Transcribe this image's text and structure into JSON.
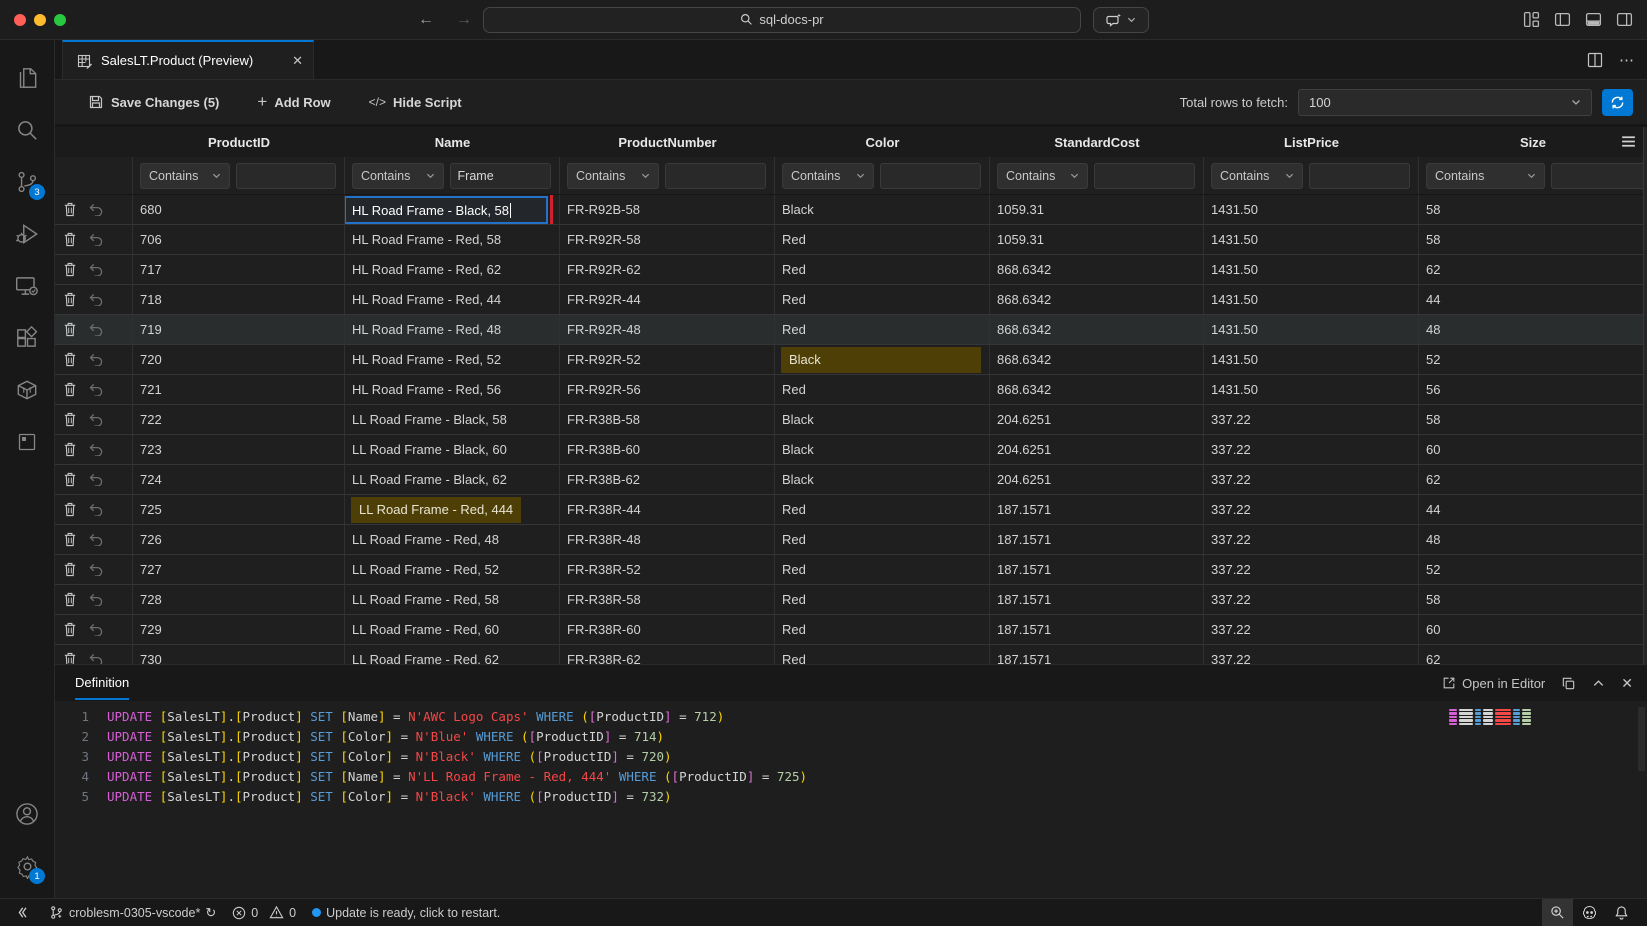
{
  "window": {
    "search_query": "sql-docs-pr",
    "traffic_lights": [
      "close",
      "minimize",
      "zoom"
    ],
    "titlebar_icons": [
      "customize-layout",
      "toggle-primary-sidebar",
      "toggle-panel",
      "toggle-secondary-sidebar"
    ]
  },
  "activity_bar": {
    "items": [
      "explorer",
      "search",
      "source-control",
      "run-and-debug",
      "remote-explorer",
      "extensions",
      "containers",
      "database"
    ],
    "source_control_badge": "3",
    "settings_badge": "1",
    "bottom_items": [
      "accounts",
      "settings"
    ]
  },
  "tab": {
    "title": "SalesLT.Product (Preview)"
  },
  "editor_actions": [
    "split-editor",
    "more-actions"
  ],
  "toolbar": {
    "save_label": "Save Changes (5)",
    "add_row_label": "Add Row",
    "hide_script_label": "Hide Script",
    "fetch_label": "Total rows to fetch:",
    "fetch_value": "100"
  },
  "grid": {
    "columns": [
      "ProductID",
      "Name",
      "ProductNumber",
      "Color",
      "StandardCost",
      "ListPrice",
      "Size"
    ],
    "filter_operator": "Contains",
    "filters": {
      "name": "Frame"
    },
    "editing_cell": {
      "row": "680",
      "column": "Name",
      "value": "HL Road Frame - Black, 58"
    },
    "rows": [
      {
        "id": "680",
        "name": "HL Road Frame - Black, 58",
        "num": "FR-R92B-58",
        "color": "Black",
        "cost": "1059.31",
        "price": "1431.50",
        "size": "58",
        "edit": "name"
      },
      {
        "id": "706",
        "name": "HL Road Frame - Red, 58",
        "num": "FR-R92R-58",
        "color": "Red",
        "cost": "1059.31",
        "price": "1431.50",
        "size": "58"
      },
      {
        "id": "717",
        "name": "HL Road Frame - Red, 62",
        "num": "FR-R92R-62",
        "color": "Red",
        "cost": "868.6342",
        "price": "1431.50",
        "size": "62"
      },
      {
        "id": "718",
        "name": "HL Road Frame - Red, 44",
        "num": "FR-R92R-44",
        "color": "Red",
        "cost": "868.6342",
        "price": "1431.50",
        "size": "44"
      },
      {
        "id": "719",
        "name": "HL Road Frame - Red, 48",
        "num": "FR-R92R-48",
        "color": "Red",
        "cost": "868.6342",
        "price": "1431.50",
        "size": "48",
        "selected": true
      },
      {
        "id": "720",
        "name": "HL Road Frame - Red, 52",
        "num": "FR-R92R-52",
        "color": "Black",
        "cost": "868.6342",
        "price": "1431.50",
        "size": "52",
        "modified": "color"
      },
      {
        "id": "721",
        "name": "HL Road Frame - Red, 56",
        "num": "FR-R92R-56",
        "color": "Red",
        "cost": "868.6342",
        "price": "1431.50",
        "size": "56"
      },
      {
        "id": "722",
        "name": "LL Road Frame - Black, 58",
        "num": "FR-R38B-58",
        "color": "Black",
        "cost": "204.6251",
        "price": "337.22",
        "size": "58"
      },
      {
        "id": "723",
        "name": "LL Road Frame - Black, 60",
        "num": "FR-R38B-60",
        "color": "Black",
        "cost": "204.6251",
        "price": "337.22",
        "size": "60"
      },
      {
        "id": "724",
        "name": "LL Road Frame - Black, 62",
        "num": "FR-R38B-62",
        "color": "Black",
        "cost": "204.6251",
        "price": "337.22",
        "size": "62"
      },
      {
        "id": "725",
        "name": "LL Road Frame - Red, 444",
        "num": "FR-R38R-44",
        "color": "Red",
        "cost": "187.1571",
        "price": "337.22",
        "size": "44",
        "modified": "name"
      },
      {
        "id": "726",
        "name": "LL Road Frame - Red, 48",
        "num": "FR-R38R-48",
        "color": "Red",
        "cost": "187.1571",
        "price": "337.22",
        "size": "48"
      },
      {
        "id": "727",
        "name": "LL Road Frame - Red, 52",
        "num": "FR-R38R-52",
        "color": "Red",
        "cost": "187.1571",
        "price": "337.22",
        "size": "52"
      },
      {
        "id": "728",
        "name": "LL Road Frame - Red, 58",
        "num": "FR-R38R-58",
        "color": "Red",
        "cost": "187.1571",
        "price": "337.22",
        "size": "58"
      },
      {
        "id": "729",
        "name": "LL Road Frame - Red, 60",
        "num": "FR-R38R-60",
        "color": "Red",
        "cost": "187.1571",
        "price": "337.22",
        "size": "60"
      },
      {
        "id": "730",
        "name": "LL Road Frame - Red, 62",
        "num": "FR-R38R-62",
        "color": "Red",
        "cost": "187.1571",
        "price": "337.22",
        "size": "62"
      }
    ]
  },
  "panel": {
    "title": "Definition",
    "open_in_editor": "Open in Editor",
    "sql_lines": [
      {
        "n": "1",
        "tokens": [
          [
            "UPDATE",
            "k1"
          ],
          [
            " ",
            "tx"
          ],
          [
            "[",
            "b1"
          ],
          [
            "SalesLT",
            "tx"
          ],
          [
            "]",
            "b1"
          ],
          [
            ".",
            "tx"
          ],
          [
            "[",
            "b1"
          ],
          [
            "Product",
            "tx"
          ],
          [
            "]",
            "b1"
          ],
          [
            " ",
            "tx"
          ],
          [
            "SET",
            "k2"
          ],
          [
            " ",
            "tx"
          ],
          [
            "[",
            "b1"
          ],
          [
            "Name",
            "tx"
          ],
          [
            "]",
            "b1"
          ],
          [
            " = ",
            "tx"
          ],
          [
            "N'AWC Logo Caps'",
            "st"
          ],
          [
            " ",
            "tx"
          ],
          [
            "WHERE",
            "k2"
          ],
          [
            " ",
            "tx"
          ],
          [
            "(",
            "b1"
          ],
          [
            "[",
            "b2"
          ],
          [
            "ProductID",
            "tx"
          ],
          [
            "]",
            "b2"
          ],
          [
            " = ",
            "tx"
          ],
          [
            "712",
            "nu"
          ],
          [
            ")",
            "b1"
          ]
        ]
      },
      {
        "n": "2",
        "tokens": [
          [
            "UPDATE",
            "k1"
          ],
          [
            " ",
            "tx"
          ],
          [
            "[",
            "b1"
          ],
          [
            "SalesLT",
            "tx"
          ],
          [
            "]",
            "b1"
          ],
          [
            ".",
            "tx"
          ],
          [
            "[",
            "b1"
          ],
          [
            "Product",
            "tx"
          ],
          [
            "]",
            "b1"
          ],
          [
            " ",
            "tx"
          ],
          [
            "SET",
            "k2"
          ],
          [
            " ",
            "tx"
          ],
          [
            "[",
            "b1"
          ],
          [
            "Color",
            "tx"
          ],
          [
            "]",
            "b1"
          ],
          [
            " = ",
            "tx"
          ],
          [
            "N'Blue'",
            "st"
          ],
          [
            " ",
            "tx"
          ],
          [
            "WHERE",
            "k2"
          ],
          [
            " ",
            "tx"
          ],
          [
            "(",
            "b1"
          ],
          [
            "[",
            "b2"
          ],
          [
            "ProductID",
            "tx"
          ],
          [
            "]",
            "b2"
          ],
          [
            " = ",
            "tx"
          ],
          [
            "714",
            "nu"
          ],
          [
            ")",
            "b1"
          ]
        ]
      },
      {
        "n": "3",
        "tokens": [
          [
            "UPDATE",
            "k1"
          ],
          [
            " ",
            "tx"
          ],
          [
            "[",
            "b1"
          ],
          [
            "SalesLT",
            "tx"
          ],
          [
            "]",
            "b1"
          ],
          [
            ".",
            "tx"
          ],
          [
            "[",
            "b1"
          ],
          [
            "Product",
            "tx"
          ],
          [
            "]",
            "b1"
          ],
          [
            " ",
            "tx"
          ],
          [
            "SET",
            "k2"
          ],
          [
            " ",
            "tx"
          ],
          [
            "[",
            "b1"
          ],
          [
            "Color",
            "tx"
          ],
          [
            "]",
            "b1"
          ],
          [
            " = ",
            "tx"
          ],
          [
            "N'Black'",
            "st"
          ],
          [
            " ",
            "tx"
          ],
          [
            "WHERE",
            "k2"
          ],
          [
            " ",
            "tx"
          ],
          [
            "(",
            "b1"
          ],
          [
            "[",
            "b2"
          ],
          [
            "ProductID",
            "tx"
          ],
          [
            "]",
            "b2"
          ],
          [
            " = ",
            "tx"
          ],
          [
            "720",
            "nu"
          ],
          [
            ")",
            "b1"
          ]
        ]
      },
      {
        "n": "4",
        "tokens": [
          [
            "UPDATE",
            "k1"
          ],
          [
            " ",
            "tx"
          ],
          [
            "[",
            "b1"
          ],
          [
            "SalesLT",
            "tx"
          ],
          [
            "]",
            "b1"
          ],
          [
            ".",
            "tx"
          ],
          [
            "[",
            "b1"
          ],
          [
            "Product",
            "tx"
          ],
          [
            "]",
            "b1"
          ],
          [
            " ",
            "tx"
          ],
          [
            "SET",
            "k2"
          ],
          [
            " ",
            "tx"
          ],
          [
            "[",
            "b1"
          ],
          [
            "Name",
            "tx"
          ],
          [
            "]",
            "b1"
          ],
          [
            " = ",
            "tx"
          ],
          [
            "N'LL Road Frame - Red, 444'",
            "st"
          ],
          [
            " ",
            "tx"
          ],
          [
            "WHERE",
            "k2"
          ],
          [
            " ",
            "tx"
          ],
          [
            "(",
            "b1"
          ],
          [
            "[",
            "b2"
          ],
          [
            "ProductID",
            "tx"
          ],
          [
            "]",
            "b2"
          ],
          [
            " = ",
            "tx"
          ],
          [
            "725",
            "nu"
          ],
          [
            ")",
            "b1"
          ]
        ]
      },
      {
        "n": "5",
        "tokens": [
          [
            "UPDATE",
            "k1"
          ],
          [
            " ",
            "tx"
          ],
          [
            "[",
            "b1"
          ],
          [
            "SalesLT",
            "tx"
          ],
          [
            "]",
            "b1"
          ],
          [
            ".",
            "tx"
          ],
          [
            "[",
            "b1"
          ],
          [
            "Product",
            "tx"
          ],
          [
            "]",
            "b1"
          ],
          [
            " ",
            "tx"
          ],
          [
            "SET",
            "k2"
          ],
          [
            " ",
            "tx"
          ],
          [
            "[",
            "b1"
          ],
          [
            "Color",
            "tx"
          ],
          [
            "]",
            "b1"
          ],
          [
            " = ",
            "tx"
          ],
          [
            "N'Black'",
            "st"
          ],
          [
            " ",
            "tx"
          ],
          [
            "WHERE",
            "k2"
          ],
          [
            " ",
            "tx"
          ],
          [
            "(",
            "b1"
          ],
          [
            "[",
            "b2"
          ],
          [
            "ProductID",
            "tx"
          ],
          [
            "]",
            "b2"
          ],
          [
            " = ",
            "tx"
          ],
          [
            "732",
            "nu"
          ],
          [
            ")",
            "b1"
          ]
        ]
      }
    ]
  },
  "status_bar": {
    "branch": "croblesm-0305-vscode*",
    "errors": "0",
    "warnings": "0",
    "message": "Update is ready, click to restart.",
    "right_icons": [
      "zoom-in",
      "copilot",
      "notifications"
    ]
  },
  "colors": {
    "accent": "#0078d4",
    "edit_outline": "#cf222e",
    "modified_cell_bg": "#4d3f05",
    "string": "#f44747",
    "keyword_primary": "#d65fd6",
    "keyword_secondary": "#569cd6",
    "bracket_gold": "#ffd700",
    "bracket_orchid": "#da70d6",
    "number": "#b5cea8"
  }
}
